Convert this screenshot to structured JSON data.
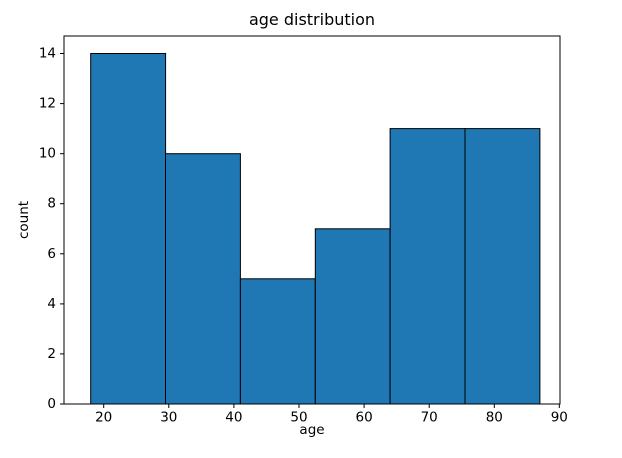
{
  "chart_data": {
    "type": "bar",
    "subtype": "histogram",
    "title": "age distribution",
    "xlabel": "age",
    "ylabel": "count",
    "bin_edges": [
      18,
      29.5,
      41,
      52.5,
      64,
      75.5,
      87
    ],
    "counts": [
      14,
      10,
      5,
      7,
      11,
      11
    ],
    "xticks": [
      20,
      30,
      40,
      50,
      60,
      70,
      80,
      90
    ],
    "yticks": [
      0,
      2,
      4,
      6,
      8,
      10,
      12,
      14
    ],
    "xlim": [
      13.9,
      90.1
    ],
    "ylim": [
      0,
      14.7
    ],
    "grid": false,
    "legend": null,
    "colors": {
      "bar_fill": "#1f77b4",
      "bar_edge": "#000000",
      "axis": "#000000",
      "text": "#000000",
      "background": "#ffffff"
    }
  }
}
